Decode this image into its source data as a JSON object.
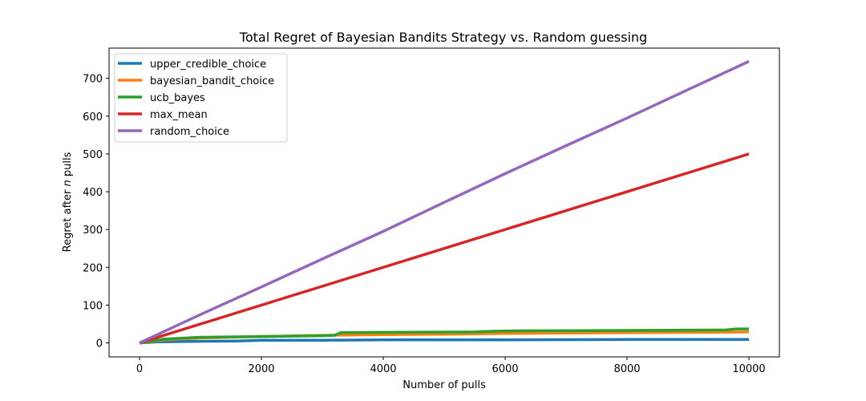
{
  "chart_data": {
    "type": "line",
    "title": "Total Regret of Bayesian Bandits Strategy vs. Random guessing",
    "xlabel": "Number of pulls",
    "ylabel_prefix": "Regret after ",
    "ylabel_var": "n",
    "ylabel_suffix": " pulls",
    "xlim": [
      -500,
      10500
    ],
    "ylim": [
      -37,
      780
    ],
    "xticks": [
      0,
      2000,
      4000,
      6000,
      8000,
      10000
    ],
    "yticks": [
      0,
      100,
      200,
      300,
      400,
      500,
      600,
      700
    ],
    "grid": false,
    "legend_position": "top-left",
    "series": [
      {
        "name": "upper_credible_choice",
        "color": "#1f77b4",
        "x": [
          0,
          300,
          800,
          1600,
          2000,
          3000,
          4000,
          6000,
          8000,
          10000
        ],
        "y": [
          0,
          3,
          4,
          5,
          7,
          7,
          8,
          8,
          9,
          9
        ]
      },
      {
        "name": "bayesian_bandit_choice",
        "color": "#ff7f0e",
        "x": [
          0,
          400,
          1000,
          2000,
          3000,
          4000,
          5000,
          6000,
          7000,
          8000,
          9000,
          10000
        ],
        "y": [
          0,
          8,
          13,
          17,
          20,
          22,
          23,
          25,
          26,
          27,
          28,
          29
        ]
      },
      {
        "name": "ucb_bayes",
        "color": "#2ca02c",
        "x": [
          0,
          400,
          1000,
          2000,
          3000,
          3200,
          3300,
          4000,
          5500,
          5800,
          6200,
          8000,
          9600,
          9800,
          10000
        ],
        "y": [
          0,
          10,
          15,
          17,
          19,
          20,
          27,
          28,
          29,
          31,
          32,
          33,
          34,
          37,
          37
        ]
      },
      {
        "name": "max_mean",
        "color": "#d62728",
        "x": [
          0,
          10000
        ],
        "y": [
          0,
          500
        ]
      },
      {
        "name": "random_choice",
        "color": "#9467bd",
        "x": [
          0,
          1000,
          2000,
          3000,
          4000,
          5000,
          6000,
          7000,
          8000,
          9000,
          10000
        ],
        "y": [
          0,
          75,
          148,
          222,
          295,
          372,
          448,
          522,
          595,
          670,
          745
        ]
      }
    ]
  }
}
